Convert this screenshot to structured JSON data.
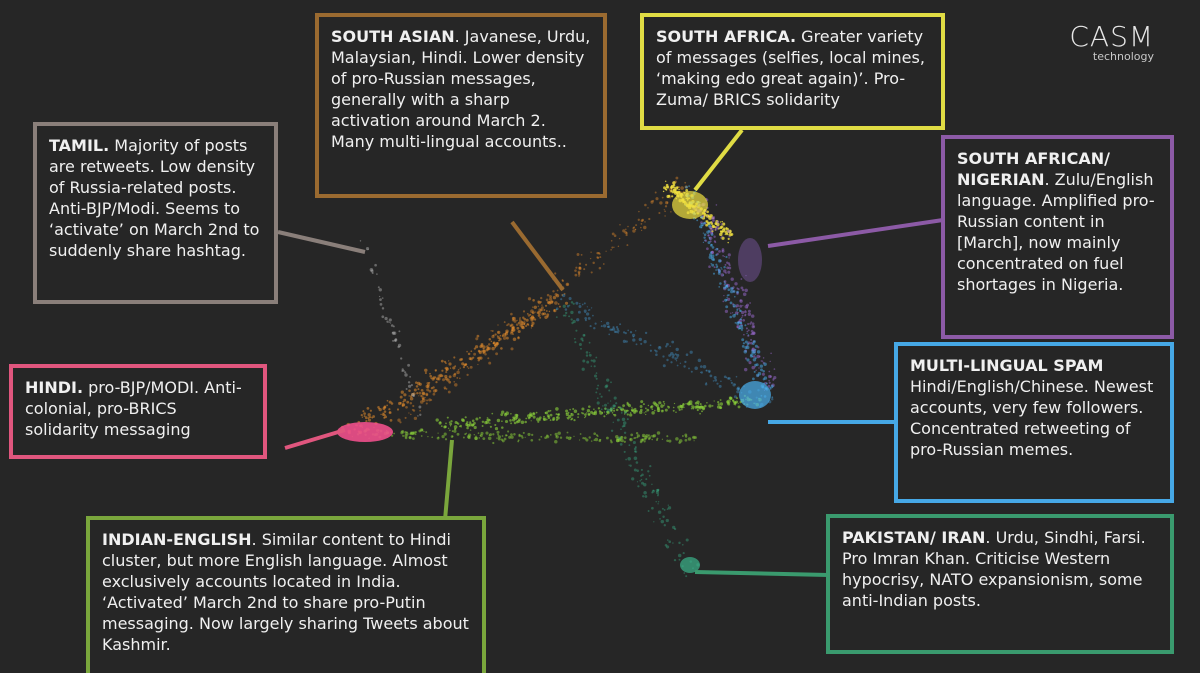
{
  "logo": {
    "name": "CASM",
    "sub": "technology"
  },
  "clusters": {
    "tamil": {
      "head": "TAMIL.",
      "body": " Majority of posts are retweets. Low density of Russia-related posts. Anti-BJP/Modi. Seems to ‘activate’ on March 2nd to suddenly share hashtag.",
      "color": "#8a7f7a"
    },
    "south_asian": {
      "head": "SOUTH ASIAN",
      "body": ". Javanese, Urdu, Malaysian, Hindi. Lower density of pro-Russian messages, generally with a sharp activation around March 2. Many multi-lingual accounts..",
      "color": "#9a6a30"
    },
    "south_africa": {
      "head": "SOUTH AFRICA.",
      "body": " Greater variety of messages (selfies, local mines, ‘making edo great again)’. Pro-Zuma/ BRICS solidarity",
      "color": "#e0dc44"
    },
    "sa_nigerian": {
      "head": "SOUTH AFRICAN/ NIGERIAN",
      "body": ". Zulu/English language. Amplified pro-Russian content in [March], now mainly concentrated on fuel shortages in Nigeria.",
      "color": "#8c5aa6"
    },
    "hindi": {
      "head": "HINDI.",
      "body": " pro-BJP/MODI. Anti-colonial, pro-BRICS solidarity messaging",
      "color": "#e0567e"
    },
    "multi_spam": {
      "head": "MULTI-LINGUAL SPAM",
      "body": " Hindi/English/Chinese. Newest accounts, very few followers. Concentrated retweeting of pro-Russian memes.",
      "color": "#46a8e6"
    },
    "indian_english": {
      "head": "INDIAN-ENGLISH",
      "body": ". Similar content to Hindi cluster, but more English language. Almost exclusively accounts located in India. ‘Activated’ March 2nd to share pro-Putin messaging. Now largely sharing Tweets about Kashmir.",
      "color": "#7aa63c"
    },
    "pakistan_iran": {
      "head": "PAKISTAN/ IRAN",
      "body": ". Urdu, Sindhi, Farsi. Pro Imran Khan. Criticise Western hypocrisy, NATO expansionism, some anti-Indian posts.",
      "color": "#3a9a6e"
    }
  },
  "colors": {
    "background": "#262626",
    "orange": "#e08a2c",
    "green": "#8cd43a",
    "pink": "#f0508c",
    "yellow": "#f0e040",
    "purple": "#9a6ad0",
    "blue": "#4ab0f0",
    "teal": "#3ab48a"
  }
}
